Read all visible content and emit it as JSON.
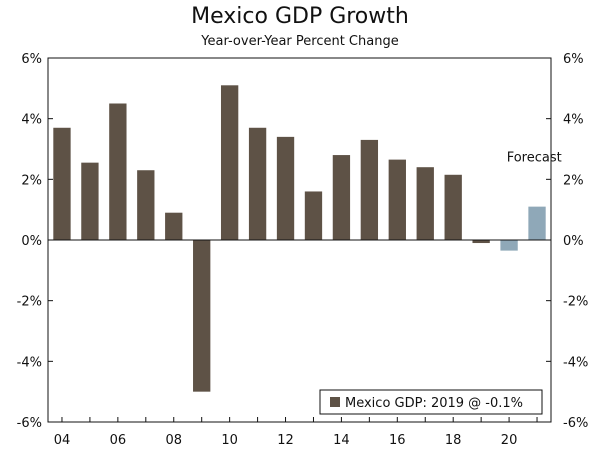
{
  "chart_data": {
    "type": "bar",
    "title": "Mexico GDP Growth",
    "subtitle": "Year-over-Year Percent Change",
    "xlabel": "",
    "ylabel": "",
    "ylim": [
      -6,
      6
    ],
    "y_ticks": [
      6,
      4,
      2,
      0,
      -2,
      -4,
      -6
    ],
    "y_tick_labels": [
      "6%",
      "4%",
      "2%",
      "0%",
      "-2%",
      "-4%",
      "-6%"
    ],
    "x_tick_labels": [
      {
        "year": 2004,
        "label": "04"
      },
      {
        "year": 2006,
        "label": "06"
      },
      {
        "year": 2008,
        "label": "08"
      },
      {
        "year": 2010,
        "label": "10"
      },
      {
        "year": 2012,
        "label": "12"
      },
      {
        "year": 2014,
        "label": "14"
      },
      {
        "year": 2016,
        "label": "16"
      },
      {
        "year": 2018,
        "label": "18"
      },
      {
        "year": 2020,
        "label": "20"
      }
    ],
    "x_range": [
      2003.5,
      2021.5
    ],
    "series": [
      {
        "name": "Mexico GDP: 2019 @ -0.1%",
        "color": "#5e5246",
        "points": [
          {
            "year": 2004,
            "value": 3.7
          },
          {
            "year": 2005,
            "value": 2.55
          },
          {
            "year": 2006,
            "value": 4.5
          },
          {
            "year": 2007,
            "value": 2.3
          },
          {
            "year": 2008,
            "value": 0.9
          },
          {
            "year": 2009,
            "value": -5.0
          },
          {
            "year": 2010,
            "value": 5.1
          },
          {
            "year": 2011,
            "value": 3.7
          },
          {
            "year": 2012,
            "value": 3.4
          },
          {
            "year": 2013,
            "value": 1.6
          },
          {
            "year": 2014,
            "value": 2.8
          },
          {
            "year": 2015,
            "value": 3.3
          },
          {
            "year": 2016,
            "value": 2.65
          },
          {
            "year": 2017,
            "value": 2.4
          },
          {
            "year": 2018,
            "value": 2.15
          },
          {
            "year": 2019,
            "value": -0.1
          }
        ]
      },
      {
        "name": "Forecast",
        "color": "#8fa8b8",
        "points": [
          {
            "year": 2020,
            "value": -0.35
          },
          {
            "year": 2021,
            "value": 1.1
          }
        ]
      }
    ],
    "annotations": [
      {
        "text": "Forecast",
        "year": 2020.9,
        "value": 2.75
      }
    ],
    "legend": {
      "label": "Mexico GDP: 2019 @ -0.1%",
      "placement": "bottom-right"
    },
    "grid": false
  }
}
